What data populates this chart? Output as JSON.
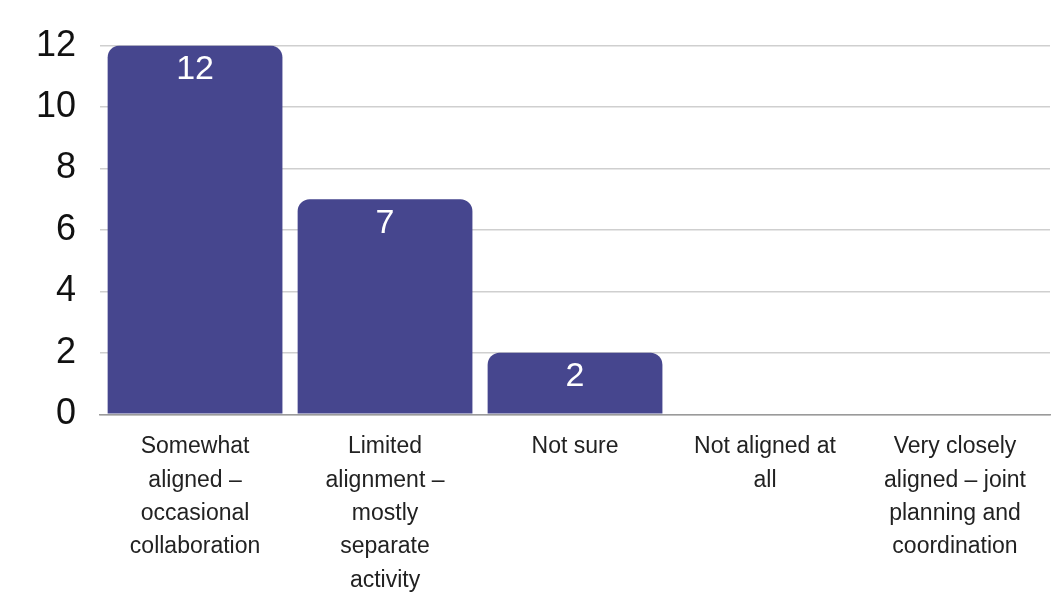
{
  "chart_data": {
    "type": "bar",
    "categories": [
      "Somewhat aligned – occasional collaboration",
      "Limited alignment – mostly separate activity",
      "Not sure",
      "Not aligned at all",
      "Very closely aligned – joint planning and coordination"
    ],
    "values": [
      12,
      7,
      2,
      0,
      0
    ],
    "color": "#46468e",
    "value_labels": [
      "12",
      "7",
      "2",
      null,
      null
    ],
    "ylim": [
      0,
      12
    ],
    "yticks": [
      0,
      2,
      4,
      6,
      8,
      10,
      12
    ],
    "grid": "y",
    "legend": false
  }
}
